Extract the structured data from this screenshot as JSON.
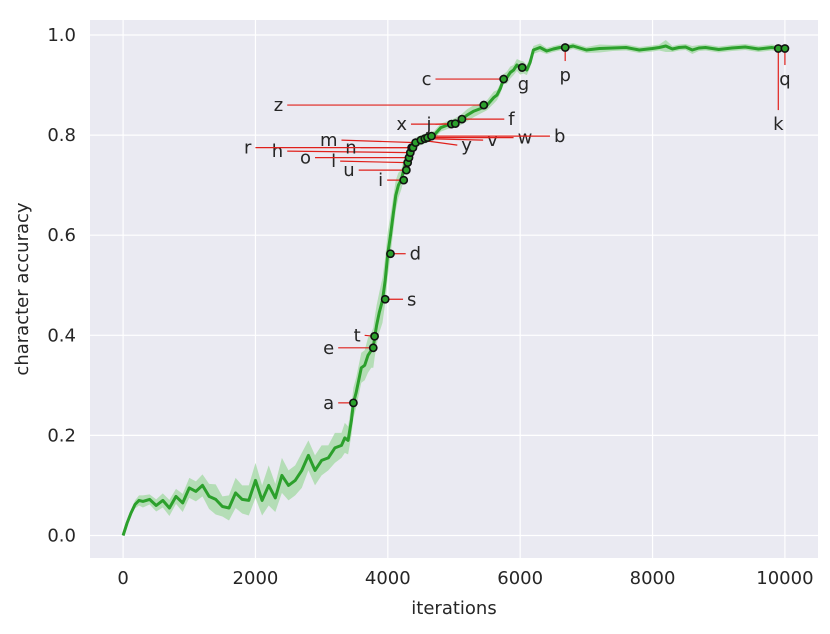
{
  "chart_data": {
    "type": "line",
    "xlabel": "iterations",
    "ylabel": "character accuracy",
    "xlim": [
      -500,
      10500
    ],
    "ylim": [
      -0.045,
      1.03
    ],
    "xticks": [
      0,
      2000,
      4000,
      6000,
      8000,
      10000
    ],
    "xtick_labels": [
      "0",
      "2000",
      "4000",
      "6000",
      "8000",
      "10000"
    ],
    "yticks": [
      0.0,
      0.2,
      0.4,
      0.6,
      0.8,
      1.0
    ],
    "ytick_labels": [
      "0.0",
      "0.2",
      "0.4",
      "0.6",
      "0.8",
      "1.0"
    ],
    "grid": true,
    "colors": {
      "background": "#eaeaf2",
      "grid": "#ffffff",
      "line": "#2ca02c",
      "band": "#a6d9a6",
      "marker_edge": "#111111",
      "annotation_line": "#e0201b"
    },
    "series": [
      {
        "x": [
          0,
          60,
          120,
          180,
          240,
          300,
          400,
          500,
          600,
          700,
          800,
          900,
          1000,
          1100,
          1200,
          1300,
          1400,
          1500,
          1600,
          1700,
          1800,
          1900,
          2000,
          2100,
          2200,
          2300,
          2400,
          2500,
          2600,
          2700,
          2800,
          2900,
          3000,
          3100,
          3200,
          3300,
          3350,
          3400,
          3450,
          3480,
          3520,
          3560,
          3600,
          3650,
          3700,
          3750,
          3780,
          3800,
          3830,
          3870,
          3920,
          3960,
          4000,
          4040,
          4080,
          4120,
          4160,
          4200,
          4240,
          4280,
          4320,
          4360,
          4420,
          4500,
          4600,
          4700,
          4800,
          4900,
          5000,
          5100,
          5200,
          5300,
          5400,
          5500,
          5600,
          5650,
          5700,
          5750,
          5800,
          5850,
          5900,
          5950,
          6000,
          6050,
          6100,
          6150,
          6200,
          6300,
          6400,
          6500,
          6600,
          6700,
          6800,
          7000,
          7200,
          7400,
          7600,
          7800,
          8000,
          8100,
          8200,
          8300,
          8400,
          8500,
          8600,
          8700,
          8800,
          9000,
          9200,
          9400,
          9600,
          9800,
          9900,
          10000
        ],
        "values": [
          0.0,
          0.025,
          0.045,
          0.062,
          0.07,
          0.068,
          0.072,
          0.06,
          0.07,
          0.055,
          0.078,
          0.065,
          0.095,
          0.088,
          0.1,
          0.078,
          0.072,
          0.058,
          0.055,
          0.085,
          0.072,
          0.07,
          0.11,
          0.07,
          0.1,
          0.075,
          0.12,
          0.1,
          0.11,
          0.13,
          0.16,
          0.13,
          0.15,
          0.155,
          0.175,
          0.18,
          0.195,
          0.19,
          0.23,
          0.265,
          0.285,
          0.31,
          0.335,
          0.34,
          0.36,
          0.37,
          0.375,
          0.395,
          0.42,
          0.445,
          0.47,
          0.51,
          0.563,
          0.6,
          0.64,
          0.68,
          0.7,
          0.71,
          0.73,
          0.75,
          0.765,
          0.775,
          0.785,
          0.79,
          0.795,
          0.8,
          0.815,
          0.82,
          0.825,
          0.83,
          0.84,
          0.848,
          0.853,
          0.86,
          0.875,
          0.88,
          0.893,
          0.912,
          0.915,
          0.925,
          0.93,
          0.94,
          0.935,
          0.935,
          0.93,
          0.945,
          0.97,
          0.975,
          0.968,
          0.972,
          0.975,
          0.975,
          0.978,
          0.97,
          0.973,
          0.974,
          0.975,
          0.97,
          0.973,
          0.975,
          0.978,
          0.972,
          0.975,
          0.976,
          0.97,
          0.974,
          0.975,
          0.971,
          0.974,
          0.976,
          0.972,
          0.975,
          0.973,
          0.973
        ],
        "spread": [
          0.0,
          0.003,
          0.005,
          0.008,
          0.01,
          0.012,
          0.01,
          0.012,
          0.014,
          0.016,
          0.015,
          0.018,
          0.02,
          0.02,
          0.022,
          0.025,
          0.03,
          0.02,
          0.025,
          0.03,
          0.028,
          0.03,
          0.035,
          0.03,
          0.04,
          0.028,
          0.035,
          0.03,
          0.03,
          0.035,
          0.03,
          0.03,
          0.03,
          0.025,
          0.03,
          0.025,
          0.03,
          0.028,
          0.03,
          0.03,
          0.03,
          0.03,
          0.03,
          0.03,
          0.035,
          0.035,
          0.04,
          0.04,
          0.04,
          0.04,
          0.045,
          0.045,
          0.045,
          0.04,
          0.035,
          0.03,
          0.025,
          0.02,
          0.02,
          0.015,
          0.012,
          0.01,
          0.01,
          0.01,
          0.01,
          0.008,
          0.008,
          0.008,
          0.008,
          0.01,
          0.012,
          0.012,
          0.01,
          0.01,
          0.012,
          0.01,
          0.01,
          0.01,
          0.012,
          0.012,
          0.01,
          0.012,
          0.014,
          0.012,
          0.01,
          0.01,
          0.008,
          0.008,
          0.006,
          0.006,
          0.006,
          0.006,
          0.006,
          0.006,
          0.008,
          0.006,
          0.006,
          0.006,
          0.006,
          0.006,
          0.012,
          0.006,
          0.006,
          0.006,
          0.008,
          0.006,
          0.006,
          0.006,
          0.006,
          0.006,
          0.006,
          0.006,
          0.006,
          0.006
        ]
      }
    ],
    "annotations": [
      {
        "label": "a",
        "x": 3480,
        "y": 0.265,
        "tx": 3250,
        "ty": 0.265
      },
      {
        "label": "e",
        "x": 3780,
        "y": 0.375,
        "tx": 3250,
        "ty": 0.375
      },
      {
        "label": "t",
        "x": 3800,
        "y": 0.398,
        "tx": 3650,
        "ty": 0.4
      },
      {
        "label": "s",
        "x": 3960,
        "y": 0.472,
        "tx": 4230,
        "ty": 0.472
      },
      {
        "label": "d",
        "x": 4040,
        "y": 0.563,
        "tx": 4270,
        "ty": 0.563
      },
      {
        "label": "i",
        "x": 4240,
        "y": 0.71,
        "tx": 3990,
        "ty": 0.71
      },
      {
        "label": "u",
        "x": 4280,
        "y": 0.73,
        "tx": 3560,
        "ty": 0.73
      },
      {
        "label": "l",
        "x": 4300,
        "y": 0.745,
        "tx": 3280,
        "ty": 0.748
      },
      {
        "label": "o",
        "x": 4320,
        "y": 0.755,
        "tx": 2900,
        "ty": 0.755
      },
      {
        "label": "h",
        "x": 4340,
        "y": 0.765,
        "tx": 2480,
        "ty": 0.768
      },
      {
        "label": "n",
        "x": 4360,
        "y": 0.775,
        "tx": 3590,
        "ty": 0.775
      },
      {
        "label": "r",
        "x": 4380,
        "y": 0.775,
        "tx": 2000,
        "ty": 0.775
      },
      {
        "label": "m",
        "x": 4420,
        "y": 0.785,
        "tx": 3300,
        "ty": 0.79
      },
      {
        "label": "y",
        "x": 4500,
        "y": 0.79,
        "tx": 5050,
        "ty": 0.78
      },
      {
        "label": "v",
        "x": 4560,
        "y": 0.793,
        "tx": 5440,
        "ty": 0.79
      },
      {
        "label": "w",
        "x": 4600,
        "y": 0.795,
        "tx": 5900,
        "ty": 0.795
      },
      {
        "label": "b",
        "x": 4660,
        "y": 0.798,
        "tx": 6450,
        "ty": 0.798
      },
      {
        "label": "x",
        "x": 4960,
        "y": 0.822,
        "tx": 4350,
        "ty": 0.822
      },
      {
        "label": "j",
        "x": 5020,
        "y": 0.823,
        "tx": 4720,
        "ty": 0.822
      },
      {
        "label": "f",
        "x": 5120,
        "y": 0.832,
        "tx": 5760,
        "ty": 0.832
      },
      {
        "label": "z",
        "x": 5450,
        "y": 0.86,
        "tx": 2480,
        "ty": 0.86
      },
      {
        "label": "c",
        "x": 5750,
        "y": 0.912,
        "tx": 4720,
        "ty": 0.912
      },
      {
        "label": "g",
        "x": 6030,
        "y": 0.935,
        "tx": 6050,
        "ty": 0.93
      },
      {
        "label": "p",
        "x": 6680,
        "y": 0.975,
        "tx": 6680,
        "ty": 0.948
      },
      {
        "label": "k",
        "x": 9900,
        "y": 0.973,
        "tx": 9900,
        "ty": 0.85
      },
      {
        "label": "q",
        "x": 10000,
        "y": 0.973,
        "tx": 10000,
        "ty": 0.94
      }
    ]
  }
}
